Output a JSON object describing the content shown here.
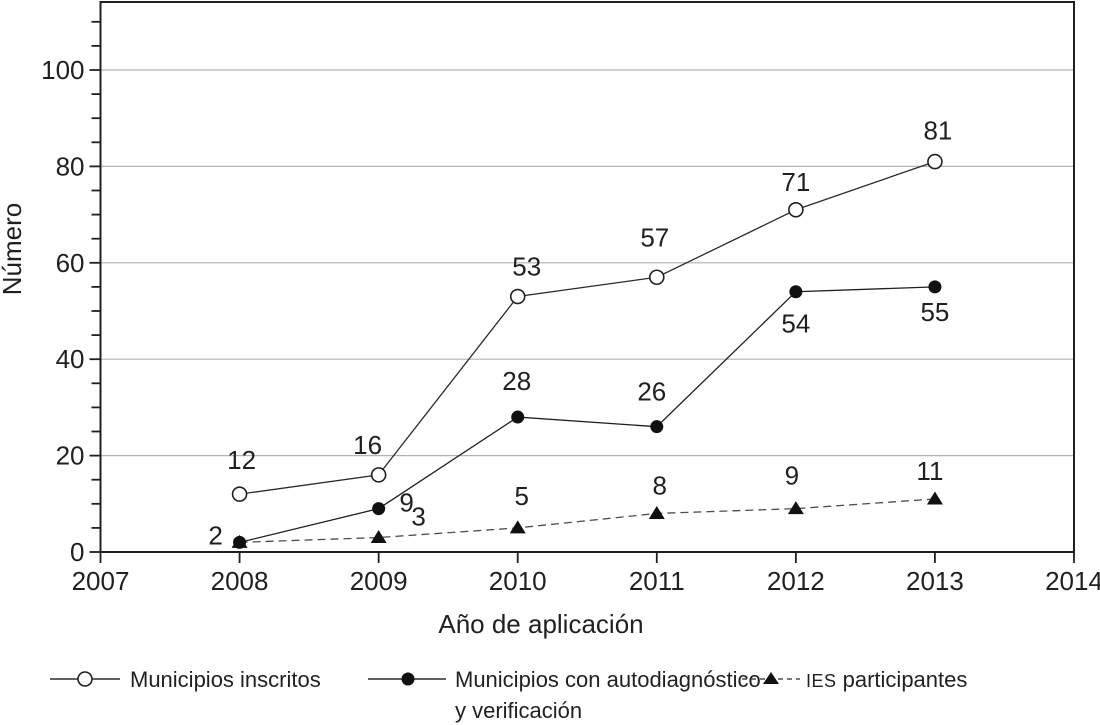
{
  "chart_data": {
    "type": "line",
    "title": "",
    "xlabel": "Año de aplicación",
    "ylabel": "Número",
    "x": [
      2008,
      2009,
      2010,
      2011,
      2012,
      2013
    ],
    "x_ticks": [
      2007,
      2008,
      2009,
      2010,
      2011,
      2012,
      2013,
      2014
    ],
    "y_ticks": [
      0,
      20,
      40,
      60,
      80,
      100
    ],
    "y_minor_step": 5,
    "y_minor_max": 110,
    "xlim": [
      2007,
      2014
    ],
    "ylim": [
      0,
      114
    ],
    "grid": "horizontal-major-only",
    "legend_position": "bottom",
    "colors": {
      "text": "#231f20",
      "gridline": "#b3b3b3",
      "axis": "#231f20"
    },
    "series": [
      {
        "name": "Municipios inscritos",
        "marker": "open-circle",
        "line": "solid",
        "color": "#2b2b2b",
        "marker_color": "#231f20",
        "values": [
          12,
          16,
          53,
          57,
          71,
          81
        ],
        "label_offsets": [
          [
            2,
            -25
          ],
          [
            -11,
            -21
          ],
          [
            9,
            -21
          ],
          [
            -2,
            -31
          ],
          [
            0,
            -19
          ],
          [
            3,
            -22
          ]
        ]
      },
      {
        "name": "Municipios con autodiagnóstico y verificación",
        "legend_lines": [
          "Municipios con autodiagnóstico",
          "y verificación"
        ],
        "marker": "filled-circle",
        "line": "solid",
        "color": "#1f1f1f",
        "marker_color": "#111111",
        "values": [
          2,
          9,
          28,
          26,
          54,
          55
        ],
        "label_offsets": [
          [
            -24,
            2
          ],
          [
            28,
            3
          ],
          [
            -1,
            -27
          ],
          [
            -5,
            -26
          ],
          [
            0,
            41
          ],
          [
            0,
            34
          ]
        ]
      },
      {
        "name": "IES participantes",
        "legend_smallcaps": "IES",
        "legend_rest": " participantes",
        "marker": "filled-triangle",
        "line": "dashed",
        "color": "#4d4d4d",
        "marker_color": "#111111",
        "values": [
          2,
          3,
          5,
          8,
          9,
          11
        ],
        "label_offsets": [
          null,
          [
            40,
            -12
          ],
          [
            4,
            -23
          ],
          [
            3,
            -19
          ],
          [
            -4,
            -24
          ],
          [
            -5,
            -19
          ]
        ]
      }
    ]
  }
}
